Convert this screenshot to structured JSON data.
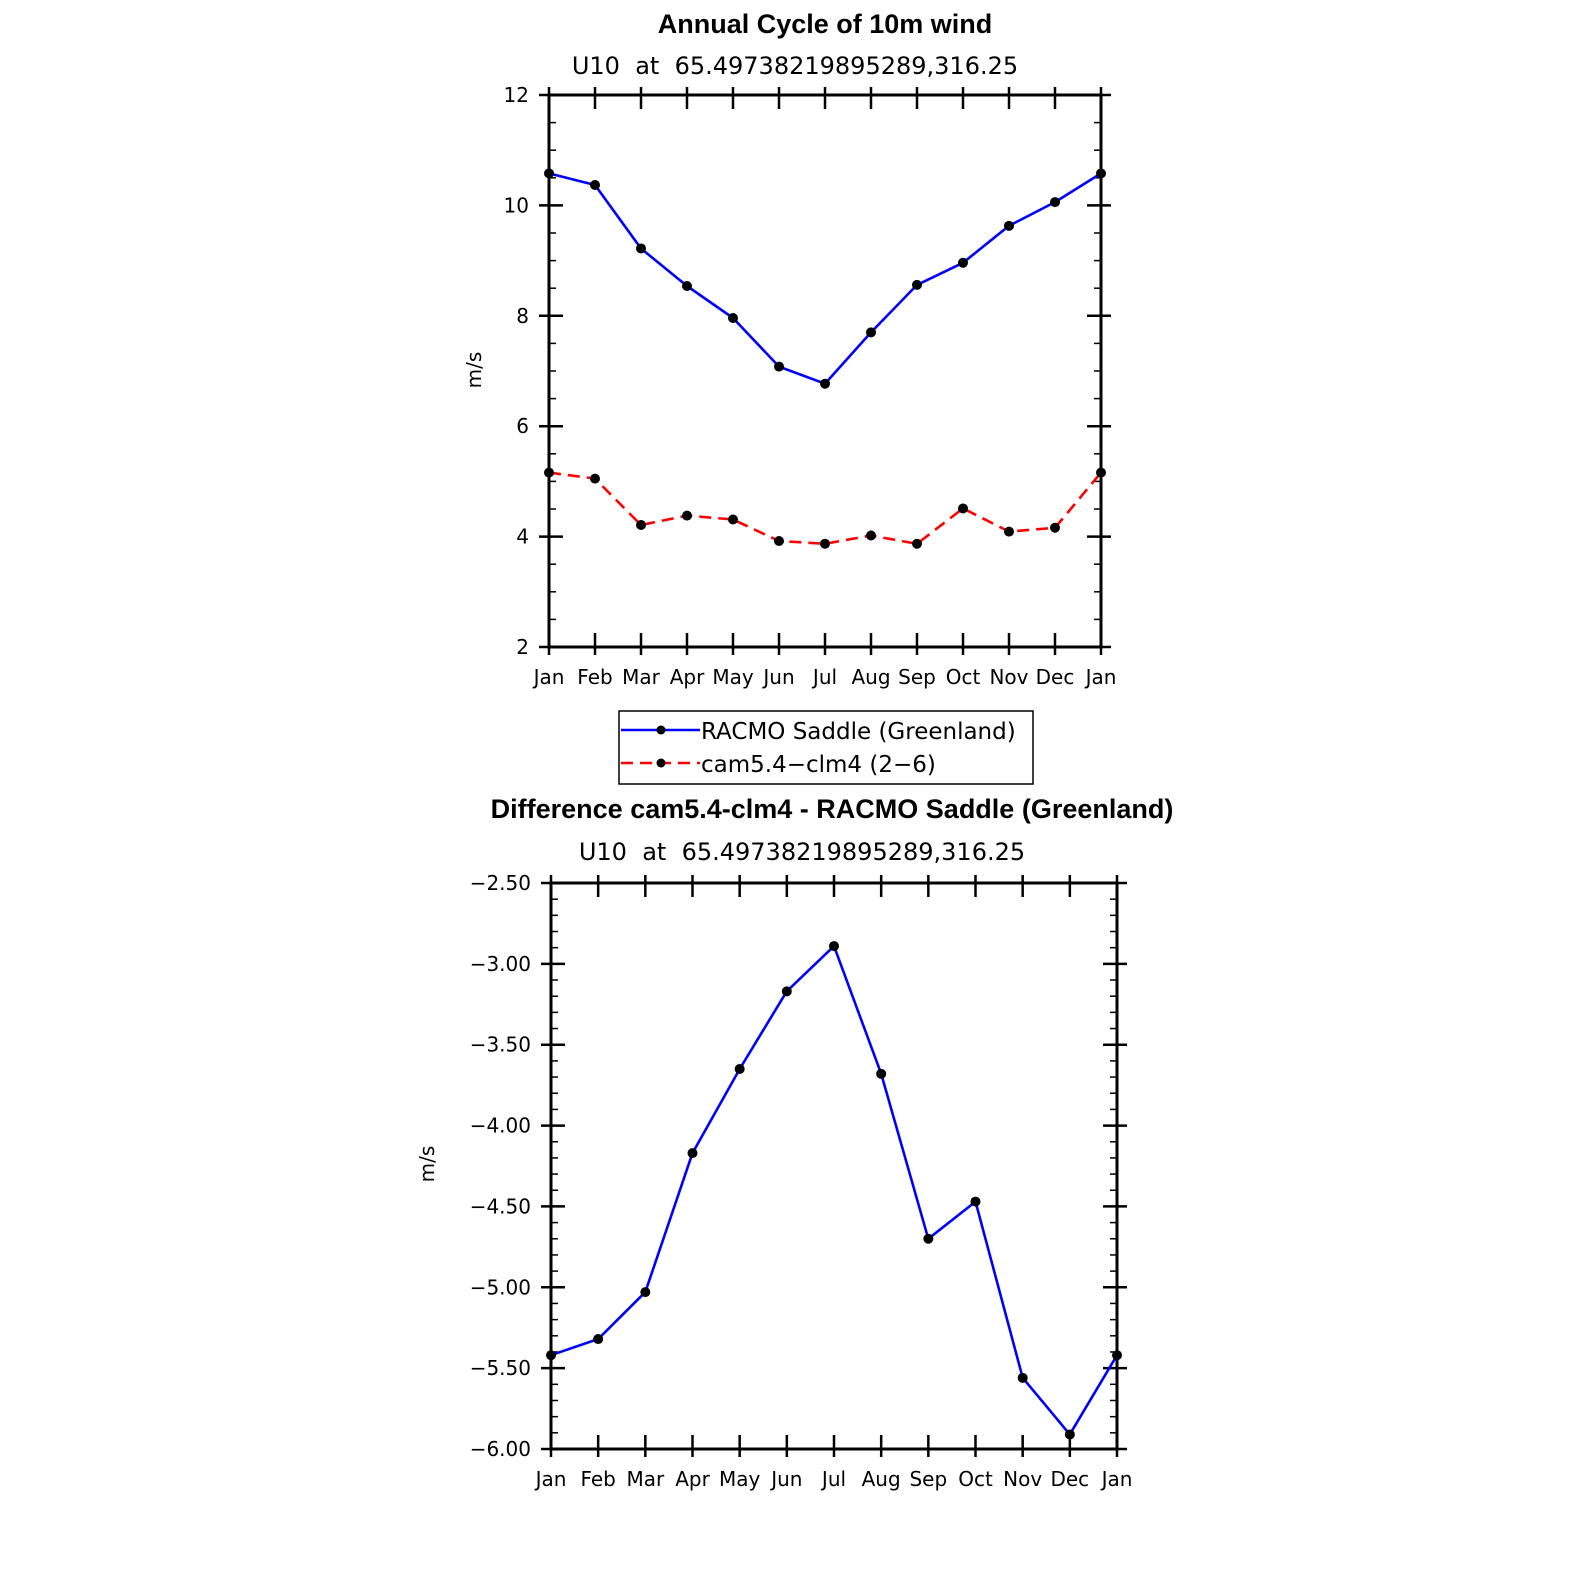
{
  "chart_data": [
    {
      "type": "line",
      "title": "Annual Cycle of 10m wind",
      "subtitle": "U10  at  65.49738219895289,316.25",
      "ylabel": "m/s",
      "xlabel": "",
      "categories": [
        "Jan",
        "Feb",
        "Mar",
        "Apr",
        "May",
        "Jun",
        "Jul",
        "Aug",
        "Sep",
        "Oct",
        "Nov",
        "Dec",
        "Jan"
      ],
      "ylim": [
        2,
        12
      ],
      "yticks": [
        "2",
        "4",
        "6",
        "8",
        "10",
        "12"
      ],
      "yticks_values": [
        2,
        4,
        6,
        8,
        10,
        12
      ],
      "series": [
        {
          "name": "RACMO Saddle (Greenland)",
          "color": "#0000ff",
          "dash": "solid",
          "values": [
            10.58,
            10.37,
            9.22,
            8.54,
            7.96,
            7.08,
            6.77,
            7.7,
            8.56,
            8.96,
            9.63,
            10.06,
            10.58
          ]
        },
        {
          "name": "cam5.4−clm4 (2−6)",
          "color": "#ff0000",
          "dash": "dashed",
          "values": [
            5.16,
            5.05,
            4.21,
            4.38,
            4.31,
            3.92,
            3.87,
            4.02,
            3.87,
            4.51,
            4.09,
            4.16,
            5.16
          ]
        }
      ],
      "legend": "below"
    },
    {
      "type": "line",
      "title": "Difference cam5.4-clm4 - RACMO Saddle (Greenland)",
      "subtitle": "U10  at  65.49738219895289,316.25",
      "ylabel": "m/s",
      "xlabel": "",
      "categories": [
        "Jan",
        "Feb",
        "Mar",
        "Apr",
        "May",
        "Jun",
        "Jul",
        "Aug",
        "Sep",
        "Oct",
        "Nov",
        "Dec",
        "Jan"
      ],
      "ylim": [
        -6.0,
        -2.5
      ],
      "yticks": [
        "−2.50",
        "−3.00",
        "−3.50",
        "−4.00",
        "−4.50",
        "−5.00",
        "−5.50",
        "−6.00"
      ],
      "yticks_values": [
        -2.5,
        -3.0,
        -3.5,
        -4.0,
        -4.5,
        -5.0,
        -5.5,
        -6.0
      ],
      "series": [
        {
          "color": "#0000ff",
          "dash": "solid",
          "values": [
            -5.42,
            -5.32,
            -5.03,
            -4.17,
            -3.65,
            -3.17,
            -2.89,
            -3.68,
            -4.7,
            -4.47,
            -5.56,
            -5.91,
            -5.42
          ]
        }
      ]
    }
  ],
  "marker_color": "#000000"
}
